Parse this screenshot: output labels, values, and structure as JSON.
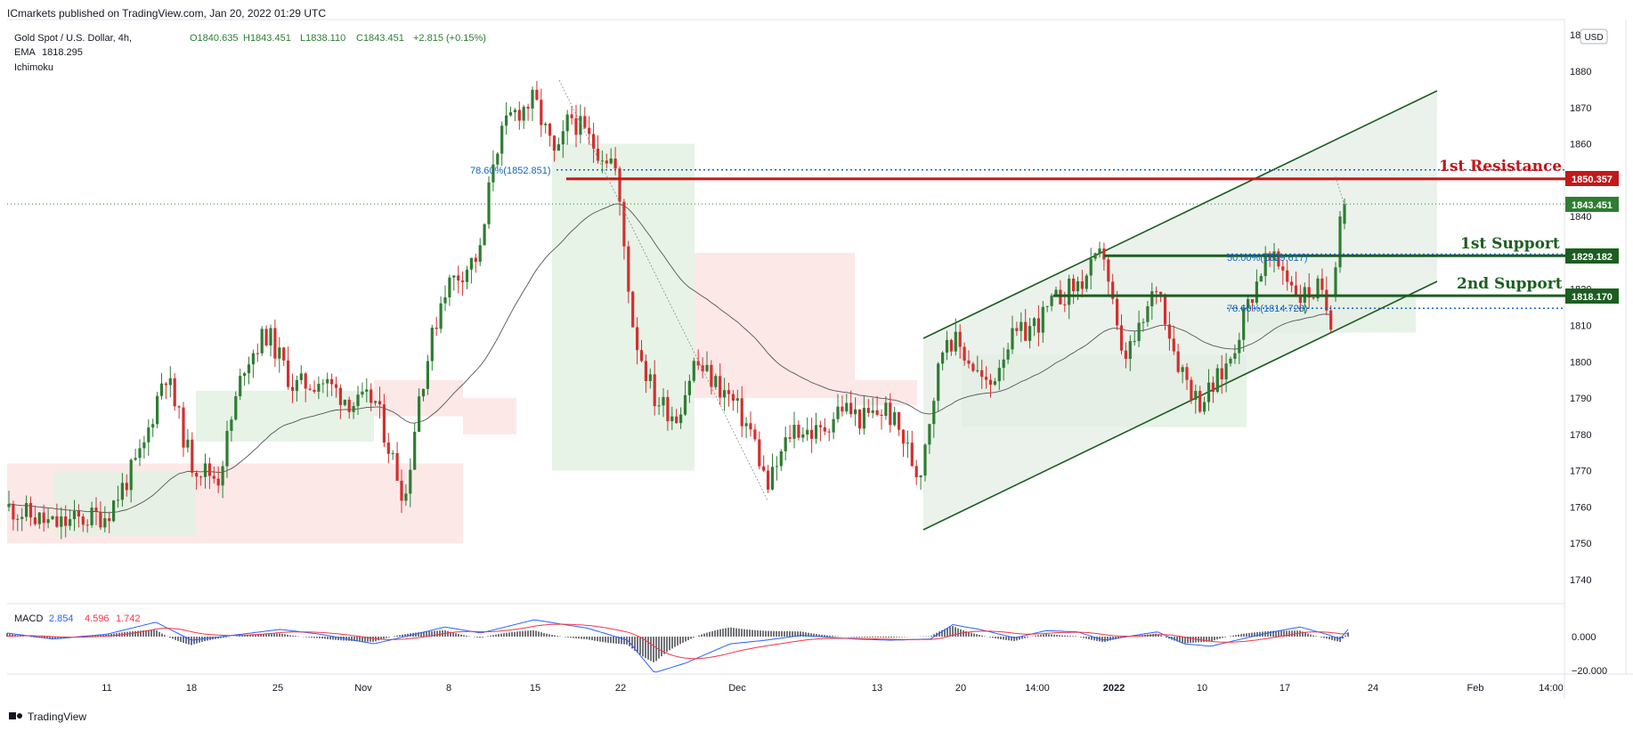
{
  "header": {
    "publisher": "ICmarkets published on TradingView.com, Jan 20, 2022 01:29 UTC",
    "symbol": "Gold Spot / U.S. Dollar, 4h,",
    "open": "O1840.635",
    "high": "H1843.451",
    "low": "L1838.110",
    "close": "C1843.451",
    "change": "+2.815 (+0.15%)",
    "ema_label": "EMA",
    "ema_value": "1818.295",
    "ichimoku_label": "Ichimoku",
    "currency": "USD"
  },
  "colors": {
    "up": "#2e7d32",
    "down": "#d32f2f",
    "resistance": "#c2181b",
    "support": "#1b5e20",
    "fib": "#1565c0",
    "channel_fill": "#e4ede4",
    "cloud_green": "#e3f1e3",
    "cloud_red": "#fde4e4",
    "macd_line": "#2962ff",
    "signal_line": "#f23645"
  },
  "annotations": {
    "resistance_label": "1st Resistance",
    "resistance_value": "1850.357",
    "support1_label": "1st Support",
    "support1_value": "1829.182",
    "support2_label": "2nd Support",
    "support2_value": "1818.170",
    "current_value": "1843.451",
    "fib_high": "78.60%(1852.851)",
    "fib_mid": "50.00%(1829.617)",
    "fib_low": "78.60%(1814.728)"
  },
  "macd": {
    "label": "MACD",
    "macd": "2.854",
    "signal": "4.596",
    "hist": "1.742",
    "ticks": [
      "0.000",
      "−20.000"
    ]
  },
  "footer": {
    "brand": "TradingView"
  },
  "chart_data": {
    "type": "candlestick",
    "instrument": "XAUUSD",
    "interval": "4h",
    "y_ticks": [
      1740,
      1750,
      1760,
      1770,
      1780,
      1790,
      1800,
      1810,
      1820,
      1830,
      1840,
      1850,
      1860,
      1870,
      1880
    ],
    "y_top_label": "18",
    "x_ticks": [
      "11",
      "18",
      "25",
      "Nov",
      "8",
      "15",
      "22",
      "Dec",
      "13",
      "20",
      "14:00",
      "2022",
      "10",
      "17",
      "24",
      "Feb",
      "14:00"
    ],
    "keypoints": {
      "label_index": [
        "Oct 8",
        "Oct 15",
        "Nov 1",
        "Nov 4",
        "Nov 12",
        "Nov 16",
        "Nov 22",
        "Dec 3",
        "Dec 15",
        "Dec 17",
        "Dec 30",
        "Jan 7",
        "Jan 18",
        "Jan 20"
      ],
      "close": [
        1758,
        1798,
        1780,
        1762,
        1862,
        1870,
        1805,
        1765,
        1762,
        1805,
        1830,
        1788,
        1812,
        1843
      ]
    },
    "levels": {
      "resistance_1": 1850.357,
      "support_1": 1829.182,
      "support_2": 1818.17,
      "last_price": 1843.451
    },
    "ema": 1818.295
  }
}
